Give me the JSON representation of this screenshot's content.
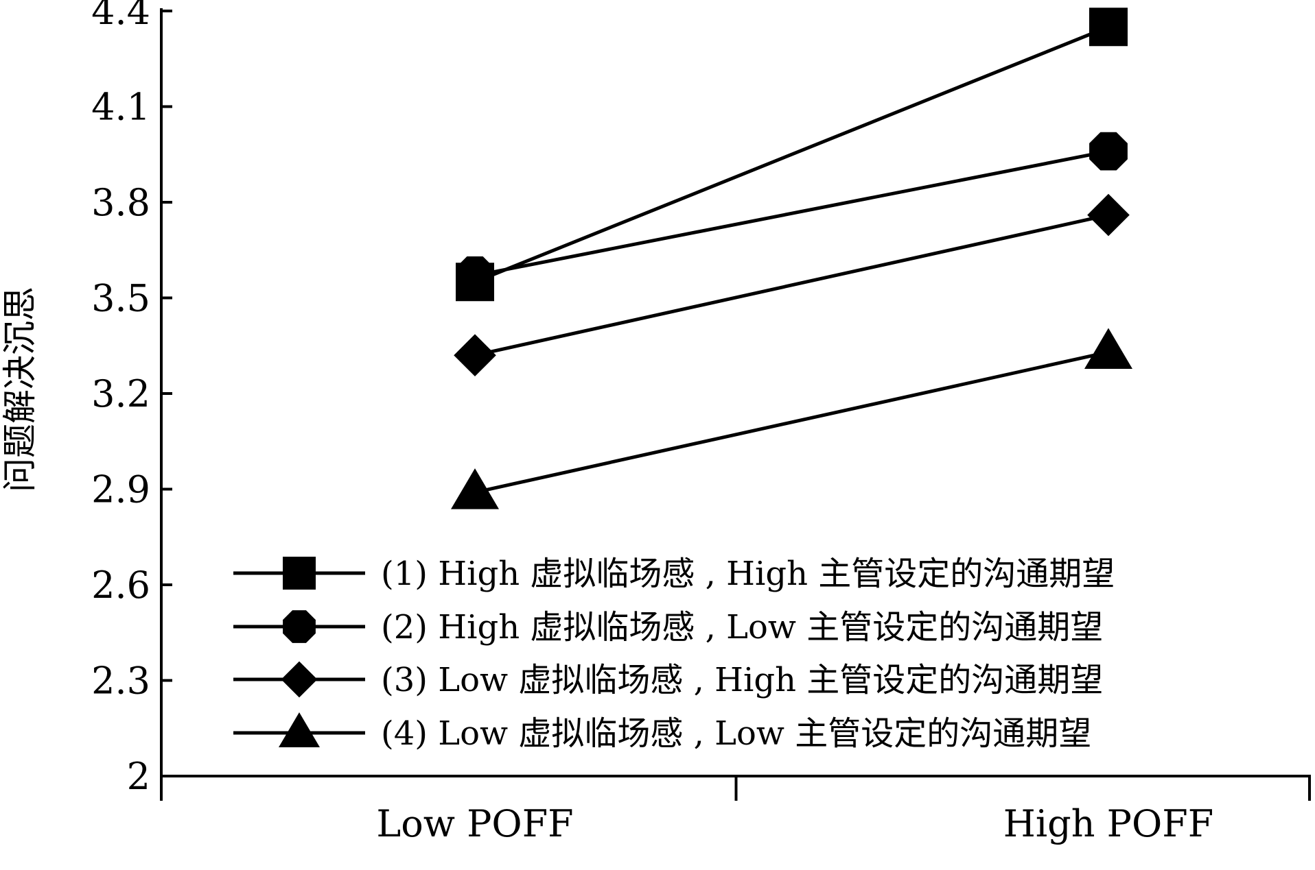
{
  "chart_data": {
    "type": "line",
    "title": "",
    "xlabel": "",
    "ylabel": "问题解决沉思",
    "categories": [
      "Low POFF",
      "High POFF"
    ],
    "ylim": [
      2,
      4.4
    ],
    "yticks": [
      "2",
      "2.3",
      "2.6",
      "2.9",
      "3.2",
      "3.5",
      "3.8",
      "4.1",
      "4.4"
    ],
    "grid": false,
    "legend_position": "bottom-right",
    "series": [
      {
        "name": "(1) High 虚拟临场感 , High 主管设定的沟通期望",
        "marker": "square",
        "color": "#000000",
        "values": [
          3.55,
          4.35
        ]
      },
      {
        "name": "(2) High 虚拟临场感 , Low 主管设定的沟通期望",
        "marker": "circle",
        "color": "#000000",
        "values": [
          3.57,
          3.96
        ]
      },
      {
        "name": "(3) Low 虚拟临场感 , High 主管设定的沟通期望",
        "marker": "diamond",
        "color": "#000000",
        "values": [
          3.32,
          3.76
        ]
      },
      {
        "name": "(4) Low 虚拟临场感 , Low 主管设定的沟通期望",
        "marker": "triangle",
        "color": "#000000",
        "values": [
          2.89,
          3.33
        ]
      }
    ]
  }
}
